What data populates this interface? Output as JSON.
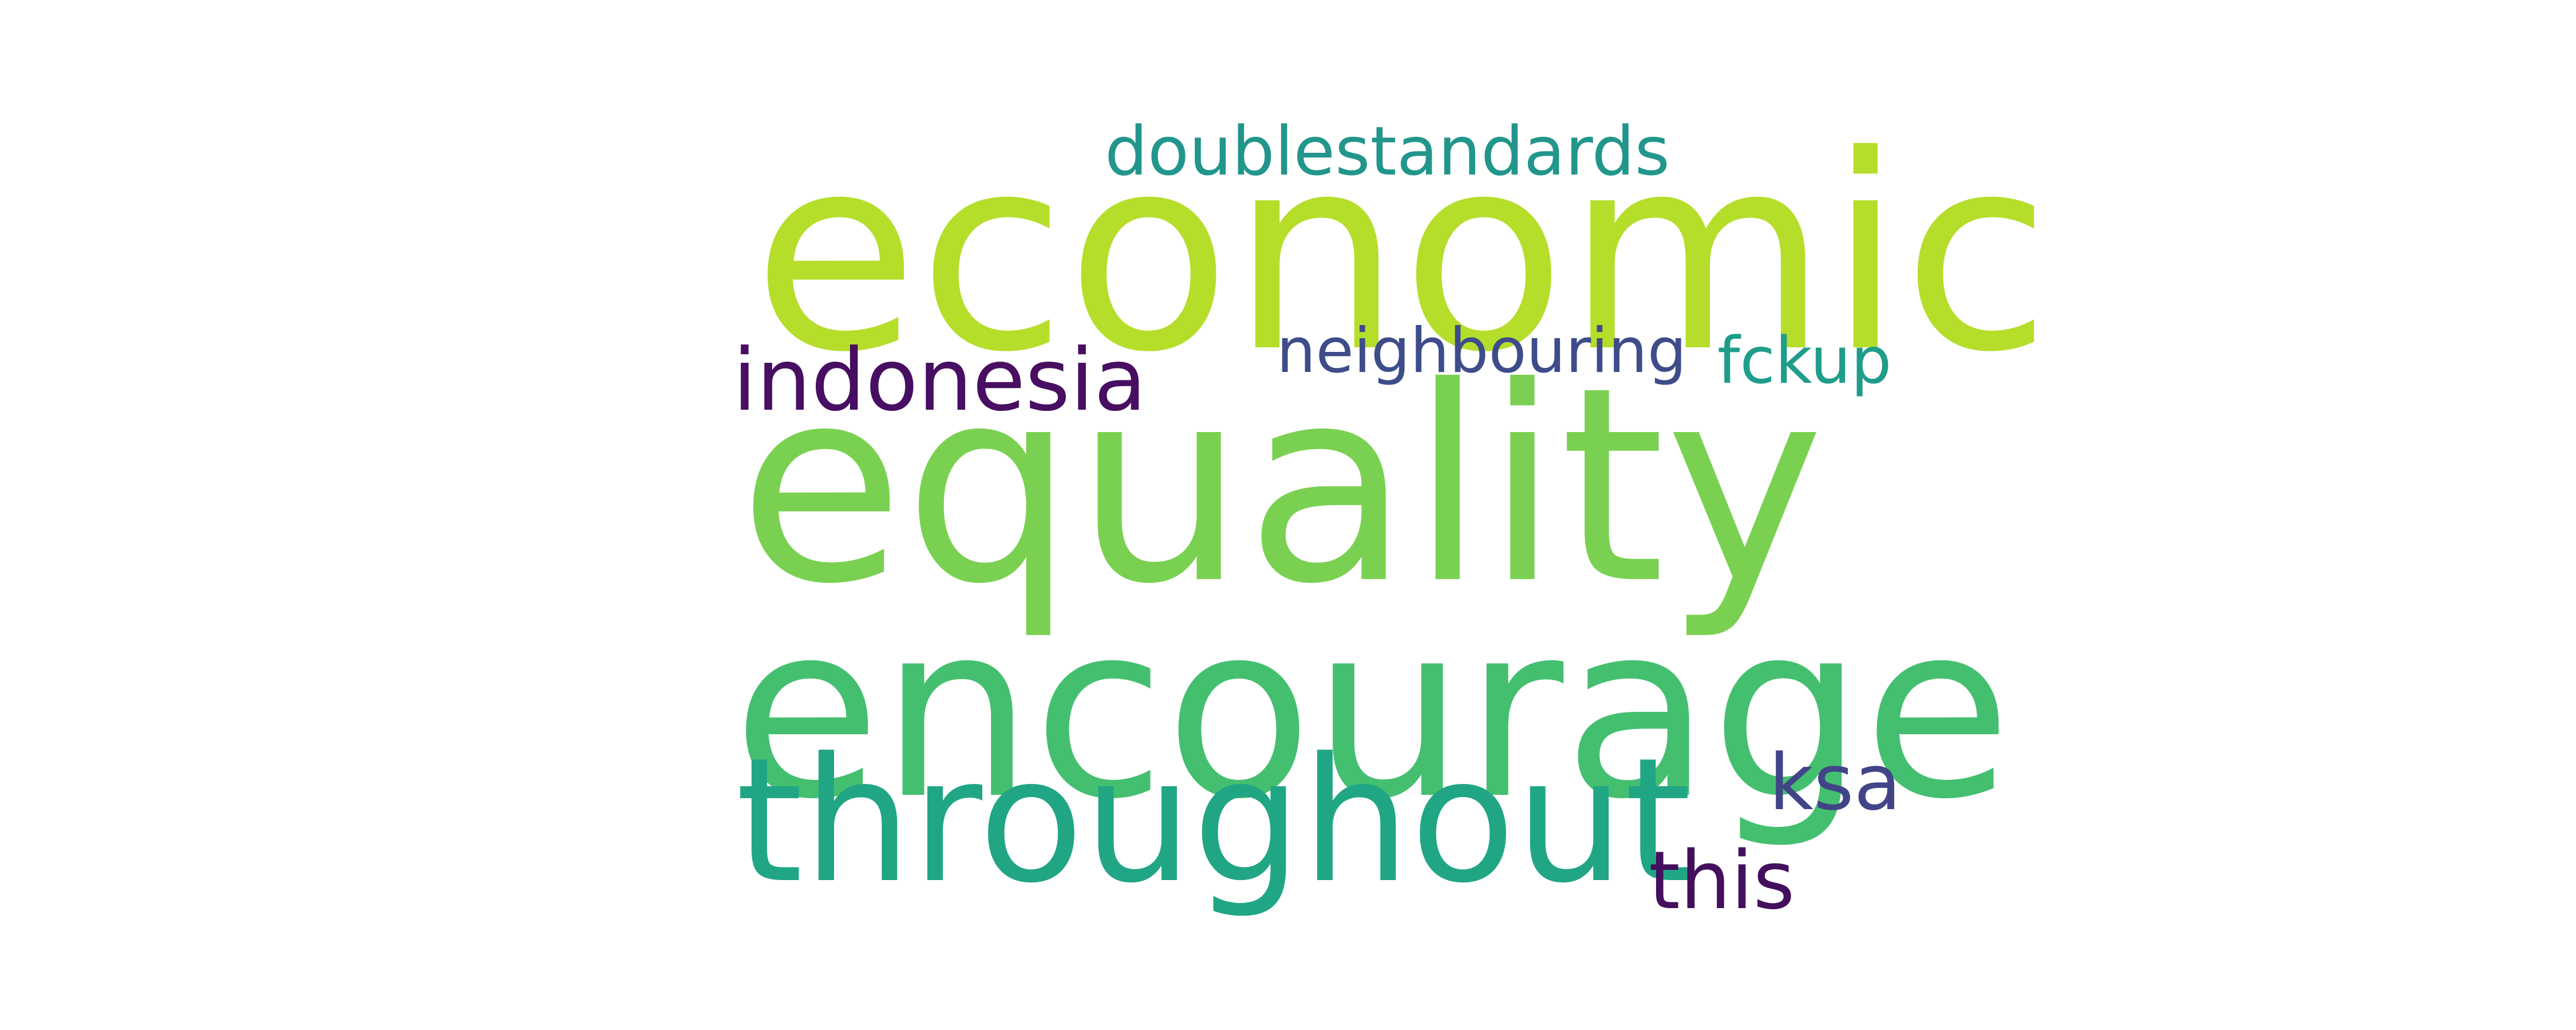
{
  "word_cloud": {
    "words": [
      {
        "key": "doublestandards",
        "text": "doublestandards",
        "color": "#22968b"
      },
      {
        "key": "economic",
        "text": "economic",
        "color": "#b5de2b"
      },
      {
        "key": "neighbouring",
        "text": "neighbouring",
        "color": "#3e4c8a"
      },
      {
        "key": "fckup",
        "text": "fckup",
        "color": "#1f9d8a"
      },
      {
        "key": "indonesia",
        "text": "indonesia",
        "color": "#470e61"
      },
      {
        "key": "equality",
        "text": "equality",
        "color": "#7ad151"
      },
      {
        "key": "encourage",
        "text": "encourage",
        "color": "#44bf70"
      },
      {
        "key": "throughout",
        "text": "throughout",
        "color": "#21a685"
      },
      {
        "key": "ksa",
        "text": "ksa",
        "color": "#414487"
      },
      {
        "key": "this",
        "text": "this",
        "color": "#440f5d"
      }
    ]
  }
}
